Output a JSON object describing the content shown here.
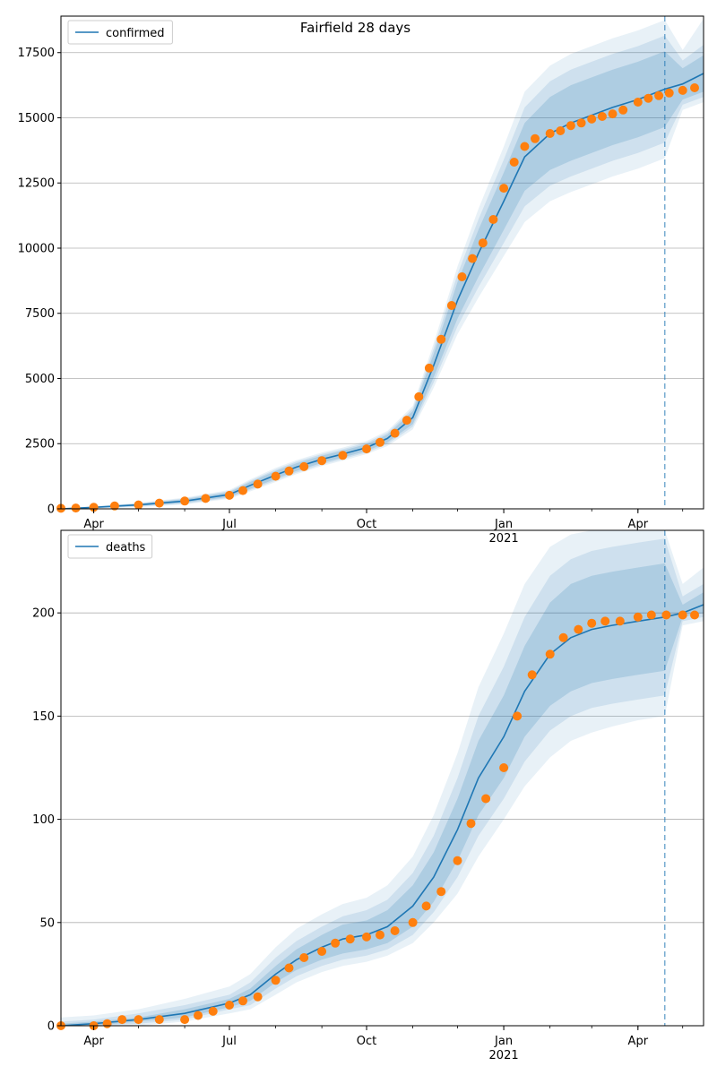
{
  "chart_data": [
    {
      "type": "line",
      "title": "Fairfield 28 days",
      "xlabel": "",
      "ylabel": "",
      "legend": {
        "placement": "top-left",
        "entries": [
          "confirmed"
        ]
      },
      "grid": "y",
      "x_ticks": [
        {
          "date": "2020-04-01",
          "label": "Apr"
        },
        {
          "date": "2020-07-01",
          "label": "Jul"
        },
        {
          "date": "2020-10-01",
          "label": "Oct"
        },
        {
          "date": "2021-01-01",
          "label": "Jan",
          "sublabel": "2021"
        },
        {
          "date": "2021-04-01",
          "label": "Apr"
        }
      ],
      "xlim": [
        "2020-03-10",
        "2021-05-15"
      ],
      "ylim": [
        0,
        18900
      ],
      "y_ticks": [
        0,
        2500,
        5000,
        7500,
        10000,
        12500,
        15000,
        17500
      ],
      "forecast_start": "2021-04-19",
      "series": [
        {
          "name": "confirmed",
          "kind": "model",
          "color": "#1f77b4",
          "x": [
            "2020-03-10",
            "2020-04-01",
            "2020-05-01",
            "2020-06-01",
            "2020-07-01",
            "2020-07-15",
            "2020-08-01",
            "2020-08-15",
            "2020-09-01",
            "2020-09-15",
            "2020-10-01",
            "2020-10-15",
            "2020-11-01",
            "2020-11-15",
            "2020-12-01",
            "2020-12-15",
            "2021-01-01",
            "2021-01-15",
            "2021-02-01",
            "2021-02-15",
            "2021-03-01",
            "2021-03-15",
            "2021-04-01",
            "2021-04-19",
            "2021-05-01",
            "2021-05-15"
          ],
          "y": [
            0,
            60,
            150,
            300,
            550,
            900,
            1300,
            1600,
            1900,
            2100,
            2350,
            2700,
            3500,
            5500,
            8000,
            9800,
            11800,
            13500,
            14400,
            14800,
            15100,
            15400,
            15700,
            16100,
            16300,
            16700
          ],
          "bands": [
            {
              "lower": [
                0,
                40,
                110,
                230,
                460,
                770,
                1150,
                1450,
                1760,
                1970,
                2220,
                2550,
                3250,
                5050,
                7300,
                8900,
                10700,
                12200,
                13000,
                13350,
                13650,
                13950,
                14250,
                14650,
                15700,
                16000
              ],
              "upper": [
                0,
                80,
                190,
                370,
                640,
                1030,
                1450,
                1750,
                2040,
                2230,
                2480,
                2850,
                3750,
                5950,
                8700,
                10700,
                12900,
                14800,
                15800,
                16250,
                16550,
                16850,
                17150,
                17550,
                16900,
                17400
              ]
            },
            {
              "lower": [
                0,
                30,
                90,
                200,
                420,
                720,
                1090,
                1390,
                1700,
                1910,
                2160,
                2480,
                3150,
                4850,
                7000,
                8500,
                10200,
                11600,
                12400,
                12750,
                13050,
                13350,
                13650,
                14050,
                15500,
                15800
              ],
              "upper": [
                0,
                90,
                210,
                400,
                680,
                1080,
                1510,
                1810,
                2100,
                2290,
                2540,
                2920,
                3850,
                6150,
                9000,
                11100,
                13400,
                15400,
                16400,
                16850,
                17150,
                17450,
                17750,
                18150,
                17200,
                17800
              ]
            },
            {
              "lower": [
                0,
                20,
                70,
                170,
                380,
                670,
                1030,
                1330,
                1640,
                1850,
                2100,
                2410,
                3050,
                4650,
                6700,
                8100,
                9700,
                11000,
                11800,
                12150,
                12450,
                12750,
                13050,
                13450,
                15300,
                15600
              ],
              "upper": [
                0,
                100,
                230,
                430,
                720,
                1130,
                1570,
                1870,
                2160,
                2350,
                2600,
                2990,
                3950,
                6350,
                9300,
                11500,
                13900,
                16000,
                17000,
                17450,
                17750,
                18050,
                18350,
                18750,
                17600,
                18800
              ]
            }
          ]
        },
        {
          "name": "",
          "kind": "observed",
          "color": "#ff7f0e",
          "x": [
            "2020-03-10",
            "2020-03-20",
            "2020-04-01",
            "2020-04-15",
            "2020-05-01",
            "2020-05-15",
            "2020-06-01",
            "2020-06-15",
            "2020-07-01",
            "2020-07-10",
            "2020-07-20",
            "2020-08-01",
            "2020-08-10",
            "2020-08-20",
            "2020-09-01",
            "2020-09-15",
            "2020-10-01",
            "2020-10-10",
            "2020-10-20",
            "2020-10-28",
            "2020-11-05",
            "2020-11-12",
            "2020-11-20",
            "2020-11-27",
            "2020-12-04",
            "2020-12-11",
            "2020-12-18",
            "2020-12-25",
            "2021-01-01",
            "2021-01-08",
            "2021-01-15",
            "2021-01-22",
            "2021-02-01",
            "2021-02-08",
            "2021-02-15",
            "2021-02-22",
            "2021-03-01",
            "2021-03-08",
            "2021-03-15",
            "2021-03-22",
            "2021-04-01",
            "2021-04-08",
            "2021-04-15",
            "2021-04-22",
            "2021-05-01",
            "2021-05-09"
          ],
          "y": [
            20,
            30,
            60,
            110,
            150,
            220,
            300,
            400,
            520,
            700,
            950,
            1250,
            1450,
            1620,
            1850,
            2050,
            2300,
            2550,
            2900,
            3400,
            4300,
            5400,
            6500,
            7800,
            8900,
            9600,
            10200,
            11100,
            12300,
            13300,
            13900,
            14200,
            14400,
            14500,
            14700,
            14800,
            14950,
            15050,
            15150,
            15300,
            15600,
            15750,
            15850,
            15950,
            16050,
            16150
          ]
        }
      ]
    },
    {
      "type": "line",
      "title": "",
      "xlabel": "",
      "ylabel": "",
      "legend": {
        "placement": "top-left",
        "entries": [
          "deaths"
        ]
      },
      "grid": "y",
      "x_ticks": [
        {
          "date": "2020-04-01",
          "label": "Apr"
        },
        {
          "date": "2020-07-01",
          "label": "Jul"
        },
        {
          "date": "2020-10-01",
          "label": "Oct"
        },
        {
          "date": "2021-01-01",
          "label": "Jan",
          "sublabel": "2021"
        },
        {
          "date": "2021-04-01",
          "label": "Apr"
        }
      ],
      "xlim": [
        "2020-03-10",
        "2021-05-15"
      ],
      "ylim": [
        0,
        240
      ],
      "y_ticks": [
        0,
        50,
        100,
        150,
        200
      ],
      "forecast_start": "2021-04-19",
      "series": [
        {
          "name": "deaths",
          "kind": "model",
          "color": "#1f77b4",
          "x": [
            "2020-03-10",
            "2020-04-01",
            "2020-05-01",
            "2020-06-01",
            "2020-07-01",
            "2020-07-15",
            "2020-08-01",
            "2020-08-15",
            "2020-09-01",
            "2020-09-15",
            "2020-10-01",
            "2020-10-15",
            "2020-11-01",
            "2020-11-15",
            "2020-12-01",
            "2020-12-15",
            "2021-01-01",
            "2021-01-15",
            "2021-02-01",
            "2021-02-15",
            "2021-03-01",
            "2021-03-15",
            "2021-04-01",
            "2021-04-19",
            "2021-05-01",
            "2021-05-15"
          ],
          "y": [
            0,
            1,
            3,
            6,
            11,
            15,
            25,
            32,
            38,
            42,
            44,
            48,
            58,
            72,
            95,
            120,
            140,
            162,
            180,
            188,
            192,
            194,
            196,
            198,
            200,
            204
          ],
          "bands": [
            {
              "lower": [
                0,
                0,
                2,
                4,
                9,
                12,
                21,
                27,
                32,
                35,
                37,
                40,
                48,
                60,
                80,
                102,
                120,
                140,
                155,
                162,
                166,
                168,
                170,
                172,
                198,
                200
              ],
              "upper": [
                1,
                2,
                4,
                8,
                13,
                18,
                29,
                37,
                44,
                49,
                51,
                56,
                68,
                84,
                110,
                138,
                160,
                184,
                205,
                214,
                218,
                220,
                222,
                224,
                204,
                210
              ]
            },
            {
              "lower": [
                0,
                0,
                1,
                3,
                8,
                10,
                18,
                24,
                29,
                32,
                34,
                37,
                44,
                55,
                72,
                92,
                110,
                128,
                143,
                150,
                154,
                156,
                158,
                160,
                196,
                198
              ],
              "upper": [
                2,
                3,
                6,
                10,
                15,
                21,
                33,
                41,
                48,
                53,
                56,
                61,
                74,
                92,
                120,
                150,
                174,
                198,
                218,
                226,
                230,
                232,
                234,
                236,
                208,
                214
              ]
            },
            {
              "lower": [
                0,
                0,
                0,
                2,
                6,
                8,
                15,
                21,
                26,
                29,
                31,
                34,
                40,
                50,
                64,
                82,
                100,
                116,
                130,
                138,
                142,
                145,
                148,
                150,
                194,
                196
              ],
              "upper": [
                4,
                5,
                8,
                13,
                19,
                25,
                38,
                47,
                54,
                59,
                62,
                68,
                82,
                102,
                132,
                164,
                190,
                214,
                232,
                238,
                240,
                240,
                240,
                240,
                214,
                222
              ]
            }
          ]
        },
        {
          "name": "",
          "kind": "observed",
          "color": "#ff7f0e",
          "x": [
            "2020-03-10",
            "2020-04-01",
            "2020-04-10",
            "2020-04-20",
            "2020-05-01",
            "2020-05-15",
            "2020-06-01",
            "2020-06-10",
            "2020-06-20",
            "2020-07-01",
            "2020-07-10",
            "2020-07-20",
            "2020-08-01",
            "2020-08-10",
            "2020-08-20",
            "2020-09-01",
            "2020-09-10",
            "2020-09-20",
            "2020-10-01",
            "2020-10-10",
            "2020-10-20",
            "2020-11-01",
            "2020-11-10",
            "2020-11-20",
            "2020-12-01",
            "2020-12-10",
            "2020-12-20",
            "2021-01-01",
            "2021-01-10",
            "2021-01-20",
            "2021-02-01",
            "2021-02-10",
            "2021-02-20",
            "2021-03-01",
            "2021-03-10",
            "2021-03-20",
            "2021-04-01",
            "2021-04-10",
            "2021-04-20",
            "2021-05-01",
            "2021-05-09"
          ],
          "y": [
            0,
            0,
            1,
            3,
            3,
            3,
            3,
            5,
            7,
            10,
            12,
            14,
            22,
            28,
            33,
            36,
            40,
            42,
            43,
            44,
            46,
            50,
            58,
            65,
            80,
            98,
            110,
            125,
            150,
            170,
            180,
            188,
            192,
            195,
            196,
            196,
            198,
            199,
            199,
            199,
            199
          ]
        }
      ]
    }
  ]
}
